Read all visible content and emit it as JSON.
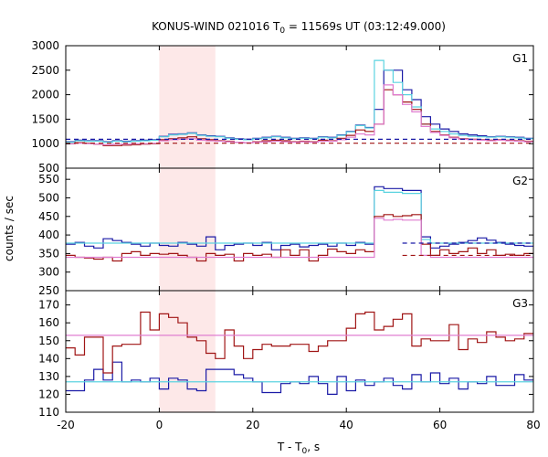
{
  "figure": {
    "title_prefix": "KONUS-WIND 021016 T",
    "title_sub": "0",
    "title_suffix": " = 11569s UT (03:12:49.000)",
    "ylabel": "counts / sec",
    "xlabel_prefix": "T - T",
    "xlabel_sub": "0",
    "xlabel_suffix": ", s"
  },
  "chart_data": {
    "type": "line",
    "xlim": [
      -20,
      80
    ],
    "x_ticks": [
      -20,
      0,
      20,
      40,
      60,
      80
    ],
    "x_tick_labels": [
      "-20",
      "0",
      "20",
      "40",
      "60",
      "80"
    ],
    "shaded_interval": {
      "x0": 0,
      "x1": 12,
      "color": "#fde8e8"
    },
    "colors": {
      "dark_blue": "#1a1aa6",
      "cyan": "#5bd3e0",
      "dark_red": "#a01515",
      "pink": "#e07ed0"
    },
    "panels": [
      {
        "label": "G1",
        "ylim": [
          500,
          3000
        ],
        "y_ticks": [
          500,
          1000,
          1500,
          2000,
          2500,
          3000
        ],
        "y_tick_labels": [
          "500",
          "1000",
          "1500",
          "2000",
          "2500",
          "3000"
        ],
        "bin_edges": [
          -20,
          -18,
          -16,
          -14,
          -12,
          -10,
          -8,
          -6,
          -4,
          -2,
          0,
          2,
          4,
          6,
          8,
          10,
          12,
          14,
          16,
          18,
          20,
          22,
          24,
          26,
          28,
          30,
          32,
          34,
          36,
          38,
          40,
          42,
          44,
          46,
          48,
          50,
          52,
          54,
          56,
          58,
          60,
          62,
          64,
          66,
          68,
          70,
          72,
          74,
          76,
          78,
          80
        ],
        "series": [
          {
            "color_key": "dark_blue",
            "style": "step",
            "values": [
              1040,
              1070,
              1060,
              1060,
              1040,
              1060,
              1050,
              1060,
              1070,
              1080,
              1150,
              1190,
              1200,
              1220,
              1180,
              1160,
              1150,
              1120,
              1100,
              1090,
              1110,
              1130,
              1150,
              1130,
              1110,
              1120,
              1110,
              1140,
              1130,
              1180,
              1250,
              1380,
              1330,
              1700,
              2500,
              2500,
              2100,
              1900,
              1550,
              1400,
              1300,
              1250,
              1200,
              1180,
              1160,
              1140,
              1150,
              1140,
              1130,
              1110
            ]
          },
          {
            "color_key": "cyan",
            "style": "step",
            "values": [
              1030,
              1060,
              1050,
              1050,
              1030,
              1050,
              1040,
              1050,
              1060,
              1070,
              1140,
              1180,
              1190,
              1210,
              1170,
              1150,
              1140,
              1110,
              1090,
              1080,
              1100,
              1120,
              1140,
              1120,
              1100,
              1110,
              1100,
              1130,
              1120,
              1170,
              1240,
              1370,
              1320,
              2700,
              2500,
              2250,
              2000,
              1750,
              1400,
              1300,
              1250,
              1200,
              1170,
              1150,
              1140,
              1130,
              1140,
              1130,
              1120,
              1100
            ]
          },
          {
            "color_key": "dark_red",
            "style": "step",
            "values": [
              1000,
              1020,
              1010,
              990,
              960,
              960,
              970,
              980,
              990,
              1000,
              1080,
              1100,
              1120,
              1140,
              1100,
              1080,
              1060,
              1050,
              1030,
              1020,
              1040,
              1060,
              1070,
              1060,
              1040,
              1050,
              1040,
              1070,
              1060,
              1110,
              1170,
              1280,
              1250,
              1400,
              2100,
              2000,
              1850,
              1700,
              1400,
              1250,
              1180,
              1130,
              1100,
              1090,
              1080,
              1070,
              1080,
              1070,
              1060,
              1050
            ]
          },
          {
            "color_key": "pink",
            "style": "step",
            "values": [
              1000,
              1010,
              1000,
              990,
              980,
              990,
              990,
              1000,
              1000,
              1010,
              1060,
              1080,
              1090,
              1100,
              1070,
              1060,
              1050,
              1040,
              1030,
              1020,
              1030,
              1040,
              1050,
              1040,
              1030,
              1040,
              1030,
              1050,
              1050,
              1080,
              1130,
              1200,
              1180,
              1400,
              2200,
              2000,
              1800,
              1650,
              1350,
              1230,
              1170,
              1120,
              1090,
              1080,
              1070,
              1060,
              1070,
              1060,
              1050,
              1040
            ]
          },
          {
            "color_key": "dark_blue",
            "style": "dashed",
            "level": 1090,
            "x_range": [
              -20,
              80
            ]
          },
          {
            "color_key": "dark_red",
            "style": "dashed",
            "level": 1010,
            "x_range": [
              -20,
              80
            ]
          }
        ]
      },
      {
        "label": "G2",
        "ylim": [
          250,
          580
        ],
        "y_ticks": [
          250,
          300,
          350,
          400,
          450,
          500,
          550
        ],
        "y_tick_labels": [
          "250",
          "300",
          "350",
          "400",
          "450",
          "500",
          "550"
        ],
        "bin_edges": [
          -20,
          -18,
          -16,
          -14,
          -12,
          -10,
          -8,
          -6,
          -4,
          -2,
          0,
          2,
          4,
          6,
          8,
          10,
          12,
          14,
          16,
          18,
          20,
          22,
          24,
          26,
          28,
          30,
          32,
          34,
          36,
          38,
          40,
          42,
          44,
          46,
          48,
          50,
          52,
          54,
          56,
          58,
          60,
          62,
          64,
          66,
          68,
          70,
          72,
          74,
          76,
          78,
          80
        ],
        "series": [
          {
            "color_key": "dark_blue",
            "style": "step",
            "values": [
              375,
              380,
              370,
              365,
              390,
              385,
              380,
              375,
              370,
              378,
              372,
              370,
              380,
              375,
              370,
              395,
              360,
              372,
              375,
              378,
              372,
              380,
              360,
              372,
              375,
              368,
              372,
              375,
              370,
              378,
              372,
              380,
              375,
              530,
              525,
              525,
              520,
              520,
              395,
              365,
              370,
              375,
              380,
              385,
              392,
              386,
              380,
              375,
              372,
              370
            ]
          },
          {
            "color_key": "cyan",
            "style": "step",
            "values": [
              378,
              378,
              378,
              378,
              378,
              378,
              378,
              378,
              378,
              378,
              378,
              378,
              378,
              378,
              378,
              378,
              378,
              378,
              378,
              378,
              378,
              378,
              378,
              378,
              378,
              378,
              378,
              378,
              378,
              378,
              378,
              378,
              378,
              520,
              515,
              515,
              512,
              512,
              388,
              378,
              378,
              378,
              378,
              378,
              378,
              378,
              378,
              378,
              378,
              378
            ]
          },
          {
            "color_key": "dark_red",
            "style": "step",
            "values": [
              345,
              340,
              338,
              335,
              340,
              330,
              350,
              355,
              345,
              350,
              348,
              350,
              345,
              340,
              330,
              350,
              345,
              348,
              330,
              350,
              345,
              348,
              340,
              360,
              345,
              360,
              330,
              345,
              362,
              355,
              350,
              360,
              355,
              450,
              455,
              450,
              452,
              455,
              375,
              345,
              360,
              350,
              355,
              365,
              350,
              360,
              345,
              348,
              345,
              350
            ]
          },
          {
            "color_key": "pink",
            "style": "step",
            "values": [
              340,
              340,
              340,
              340,
              340,
              340,
              340,
              340,
              340,
              340,
              340,
              340,
              340,
              340,
              340,
              340,
              340,
              340,
              340,
              340,
              340,
              340,
              340,
              340,
              340,
              340,
              340,
              340,
              340,
              340,
              340,
              340,
              340,
              445,
              440,
              442,
              440,
              440,
              345,
              340,
              340,
              340,
              340,
              340,
              340,
              340,
              340,
              340,
              340,
              340
            ]
          },
          {
            "color_key": "dark_blue",
            "style": "dashed",
            "level": 378,
            "x_range": [
              52,
              80
            ]
          },
          {
            "color_key": "dark_red",
            "style": "dashed",
            "level": 345,
            "x_range": [
              52,
              80
            ]
          }
        ]
      },
      {
        "label": "G3",
        "ylim": [
          110,
          178
        ],
        "y_ticks": [
          110,
          120,
          130,
          140,
          150,
          160,
          170
        ],
        "y_tick_labels": [
          "110",
          "120",
          "130",
          "140",
          "150",
          "160",
          "170"
        ],
        "bin_edges": [
          -20,
          -18,
          -16,
          -14,
          -12,
          -10,
          -8,
          -6,
          -4,
          -2,
          0,
          2,
          4,
          6,
          8,
          10,
          12,
          14,
          16,
          18,
          20,
          22,
          24,
          26,
          28,
          30,
          32,
          34,
          36,
          38,
          40,
          42,
          44,
          46,
          48,
          50,
          52,
          54,
          56,
          58,
          60,
          62,
          64,
          66,
          68,
          70,
          72,
          74,
          76,
          78,
          80
        ],
        "series": [
          {
            "color_key": "dark_blue",
            "style": "step",
            "values": [
              122,
              122,
              128,
              134,
              128,
              138,
              127,
              128,
              127,
              129,
              123,
              129,
              128,
              123,
              122,
              134,
              134,
              134,
              131,
              129,
              127,
              121,
              121,
              126,
              127,
              126,
              130,
              126,
              120,
              130,
              122,
              128,
              125,
              127,
              129,
              125,
              123,
              131,
              127,
              132,
              126,
              129,
              123,
              127,
              126,
              130,
              125,
              125,
              131,
              128
            ]
          },
          {
            "color_key": "cyan",
            "style": "flat",
            "level": 127,
            "x_range": [
              -20,
              80
            ]
          },
          {
            "color_key": "dark_red",
            "style": "step",
            "values": [
              146,
              142,
              152,
              152,
              132,
              147,
              148,
              148,
              166,
              156,
              165,
              163,
              160,
              152,
              150,
              143,
              140,
              156,
              147,
              140,
              145,
              148,
              147,
              147,
              148,
              148,
              144,
              147,
              150,
              150,
              157,
              165,
              166,
              156,
              158,
              162,
              165,
              147,
              151,
              150,
              150,
              159,
              145,
              151,
              149,
              155,
              152,
              150,
              151,
              154
            ]
          },
          {
            "color_key": "pink",
            "style": "flat",
            "level": 153,
            "x_range": [
              -20,
              80
            ]
          }
        ]
      }
    ]
  }
}
